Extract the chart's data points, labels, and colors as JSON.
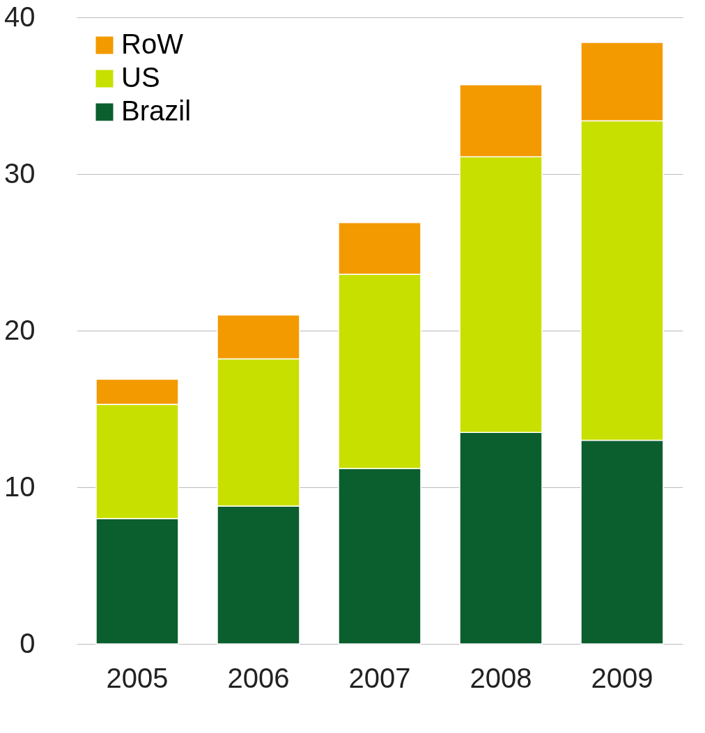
{
  "chart_data": {
    "type": "bar",
    "stacked": true,
    "categories": [
      "2005",
      "2006",
      "2007",
      "2008",
      "2009"
    ],
    "series": [
      {
        "name": "Brazil",
        "color": "#0b5e2e",
        "values": [
          8.0,
          8.8,
          11.2,
          13.5,
          13.0
        ]
      },
      {
        "name": "US",
        "color": "#c8e000",
        "values": [
          7.3,
          9.4,
          12.4,
          17.6,
          20.4
        ]
      },
      {
        "name": "RoW",
        "color": "#f39a00",
        "values": [
          1.6,
          2.8,
          3.3,
          4.6,
          5.0
        ]
      }
    ],
    "ylim": [
      0,
      40
    ],
    "yticks": [
      0,
      10,
      20,
      30,
      40
    ],
    "grid": "y",
    "legend": "top left"
  }
}
